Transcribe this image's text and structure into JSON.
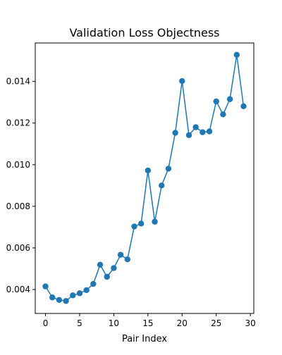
{
  "chart_data": {
    "type": "line",
    "title": "Validation Loss Objectness",
    "xlabel": "Pair Index",
    "ylabel": "",
    "xlim": [
      -1.5,
      30.5
    ],
    "ylim": [
      0.00285,
      0.01585
    ],
    "xticks": [
      0,
      5,
      10,
      15,
      20,
      25,
      30
    ],
    "xtick_labels": [
      "0",
      "5",
      "10",
      "15",
      "20",
      "25",
      "30"
    ],
    "yticks": [
      0.004,
      0.006,
      0.008,
      0.01,
      0.012,
      0.014
    ],
    "ytick_labels": [
      "0.004",
      "0.006",
      "0.008",
      "0.010",
      "0.012",
      "0.014"
    ],
    "grid": false,
    "legend": "none",
    "marker": "circle",
    "series": [
      {
        "name": "",
        "color": "#1f77b4",
        "x": [
          0,
          1,
          2,
          3,
          4,
          5,
          6,
          7,
          8,
          9,
          10,
          11,
          12,
          13,
          14,
          15,
          16,
          17,
          18,
          19,
          20,
          21,
          22,
          23,
          24,
          25,
          26,
          27,
          28,
          29
        ],
        "y": [
          0.00415,
          0.00362,
          0.0035,
          0.00345,
          0.00372,
          0.00382,
          0.00397,
          0.00427,
          0.00519,
          0.00461,
          0.00503,
          0.00567,
          0.00545,
          0.00703,
          0.00717,
          0.00972,
          0.00726,
          0.009,
          0.00981,
          0.01153,
          0.01402,
          0.01142,
          0.0118,
          0.01156,
          0.0116,
          0.01304,
          0.01242,
          0.01315,
          0.01528,
          0.01281
        ]
      }
    ]
  }
}
